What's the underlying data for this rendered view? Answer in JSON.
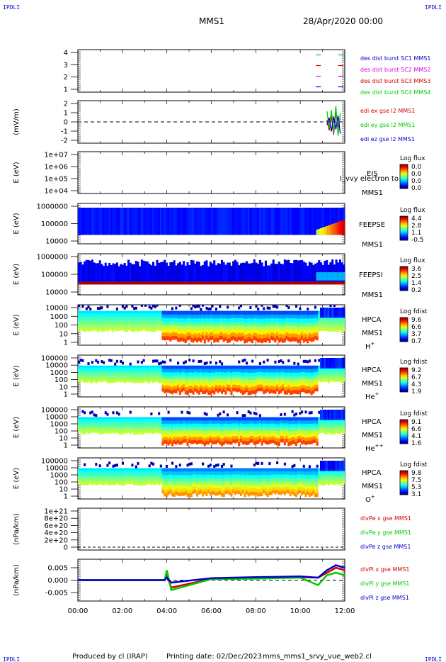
{
  "header": {
    "left_corner": "IPDLI",
    "right_corner": "IPDLI",
    "title": "MMS1",
    "date": "28/Apr/2020 00:00"
  },
  "footer": {
    "left_corner": "IPDLI",
    "right_corner": "IPDLI",
    "produced_by": "Produced by cl (IRAP)",
    "printing_date": "Printing date: 02/Dec/2023",
    "script_name": "mms_mms1_srvy_vue_web2.cl"
  },
  "x_axis": {
    "tick_labels": [
      "00:00",
      "02:00",
      "04:00",
      "06:00",
      "08:00",
      "10:00",
      "12:00"
    ],
    "range_hours": [
      0,
      12
    ]
  },
  "colors": {
    "red": "#d40000",
    "green": "#00cc00",
    "blue": "#0000c8",
    "magenta": "#e000e0",
    "line": "#000000"
  },
  "chart_data": [
    {
      "type": "line",
      "panel": "burst",
      "ylabel": "",
      "y_ticks": [
        "4",
        "3",
        "2",
        "1"
      ],
      "ylim": [
        0.5,
        4.5
      ],
      "legend": [
        {
          "text": "des dist burst SC1 MMS1",
          "color": "#0000c8"
        },
        {
          "text": "des dist burst SC2 MMS2",
          "color": "#e000e0"
        },
        {
          "text": "des dist burst SC3 MMS3",
          "color": "#d40000"
        },
        {
          "text": "des dist burst SC4 MMS4",
          "color": "#00cc00"
        }
      ],
      "series": [
        {
          "name": "des dist burst SC1 MMS1",
          "level": 1,
          "x": [
            10.7,
            11.1,
            11.7,
            12.0
          ]
        },
        {
          "name": "des dist burst SC2 MMS2",
          "level": 2,
          "x": [
            10.7,
            11.1,
            11.7,
            12.0
          ]
        },
        {
          "name": "des dist burst SC3 MMS3",
          "level": 3,
          "x": [
            10.7,
            11.1,
            11.7,
            12.0
          ]
        },
        {
          "name": "des dist burst SC4 MMS4",
          "level": 4,
          "x": [
            10.7,
            11.1,
            11.7,
            12.0
          ]
        }
      ]
    },
    {
      "type": "line",
      "panel": "edi",
      "ylabel": "(mV/m)",
      "y_ticks": [
        "2",
        "1",
        "0",
        "-1",
        "-2"
      ],
      "ylim": [
        -2,
        2
      ],
      "legend": [
        {
          "text": "edi ex gse l2 MMS1",
          "color": "#d40000"
        },
        {
          "text": "edi ey gse l2 MMS1",
          "color": "#00cc00"
        },
        {
          "text": "edi ez gse l2 MMS1",
          "color": "#0000c8"
        }
      ],
      "series": [
        {
          "name": "edi ex gse l2 MMS1",
          "x": [
            11.2,
            11.3,
            11.4,
            11.5,
            11.6,
            11.7,
            11.8
          ],
          "y": [
            0.2,
            -0.8,
            0.6,
            -1.2,
            0.9,
            -0.5,
            0.3
          ]
        },
        {
          "name": "edi ey gse l2 MMS1",
          "x": [
            11.2,
            11.3,
            11.4,
            11.5,
            11.6,
            11.7,
            11.8
          ],
          "y": [
            1.0,
            -0.6,
            1.1,
            -1.0,
            1.5,
            -1.3,
            0.8
          ]
        },
        {
          "name": "edi ez gse l2 MMS1",
          "x": [
            11.2,
            11.3,
            11.4,
            11.5,
            11.6,
            11.7,
            11.8
          ],
          "y": [
            -0.3,
            0.4,
            -0.9,
            0.5,
            -0.7,
            0.6,
            -1.1
          ]
        }
      ]
    },
    {
      "type": "heatmap",
      "panel": "eis",
      "ylabel": "E (eV)",
      "y_ticks": [
        "1e+07",
        "1e+06",
        "1e+05",
        "1e+04"
      ],
      "labels": [
        "EIS",
        "MMS1"
      ],
      "overlay_text": "I_vvy electron to",
      "colorbar": {
        "title": "Log flux",
        "ticks": [
          "0.0",
          "0.0",
          "0.0",
          "0.0"
        ]
      },
      "empty": true
    },
    {
      "type": "heatmap",
      "panel": "feepse",
      "ylabel": "E (eV)",
      "y_ticks": [
        "1000000",
        "100000",
        "10000"
      ],
      "labels": [
        "FEEPSE",
        "MMS1"
      ],
      "colorbar": {
        "title": "Log flux",
        "ticks": [
          "4.4",
          "2.8",
          "1.1",
          "-0.5"
        ]
      }
    },
    {
      "type": "heatmap",
      "panel": "feepsi",
      "ylabel": "E (eV)",
      "y_ticks": [
        "1000000",
        "100000",
        "10000"
      ],
      "labels": [
        "FEEPSI",
        "MMS1"
      ],
      "colorbar": {
        "title": "Log flux",
        "ticks": [
          "3.6",
          "2.5",
          "1.4",
          "0.2"
        ]
      }
    },
    {
      "type": "heatmap",
      "panel": "hpca_h",
      "ylabel": "E (eV)",
      "y_ticks": [
        "10000",
        "1000",
        "100",
        "10",
        "1"
      ],
      "labels": [
        "HPCA",
        "MMS1"
      ],
      "species": "H",
      "species_sup": "+",
      "colorbar": {
        "title": "Log fdist",
        "ticks": [
          "9.6",
          "6.6",
          "3.7",
          "0.7"
        ]
      }
    },
    {
      "type": "heatmap",
      "panel": "hpca_he",
      "ylabel": "E (eV)",
      "y_ticks": [
        "100000",
        "10000",
        "1000",
        "100",
        "10",
        "1"
      ],
      "labels": [
        "HPCA",
        "MMS1"
      ],
      "species": "He",
      "species_sup": "+",
      "colorbar": {
        "title": "Log fdist",
        "ticks": [
          "9.2",
          "6.7",
          "4.3",
          "1.9"
        ]
      }
    },
    {
      "type": "heatmap",
      "panel": "hpca_hepp",
      "ylabel": "E (eV)",
      "y_ticks": [
        "100000",
        "10000",
        "1000",
        "100",
        "10",
        "1"
      ],
      "labels": [
        "HPCA",
        "MMS1"
      ],
      "species": "He",
      "species_sup": "++",
      "colorbar": {
        "title": "Log fdist",
        "ticks": [
          "9.1",
          "6.6",
          "4.1",
          "1.6"
        ]
      }
    },
    {
      "type": "heatmap",
      "panel": "hpca_o",
      "ylabel": "E (eV)",
      "y_ticks": [
        "100000",
        "10000",
        "1000",
        "100",
        "10",
        "1"
      ],
      "labels": [
        "HPCA",
        "MMS1"
      ],
      "species": "O",
      "species_sup": "+",
      "colorbar": {
        "title": "Log fdist",
        "ticks": [
          "9.8",
          "7.5",
          "5.3",
          "3.1"
        ]
      }
    },
    {
      "type": "line",
      "panel": "divpe",
      "ylabel": "(nPa/km)",
      "y_ticks": [
        "1e+21",
        "8e+20",
        "6e+20",
        "4e+20",
        "2e+20",
        "0"
      ],
      "ylim": [
        0,
        1.05e+21
      ],
      "legend": [
        {
          "text": "divPe x gse MMS1",
          "color": "#d40000"
        },
        {
          "text": "divPe y gse MMS1",
          "color": "#00cc00"
        },
        {
          "text": "divPe z gse MMS1",
          "color": "#0000c8"
        }
      ],
      "series": []
    },
    {
      "type": "line",
      "panel": "divpi",
      "ylabel": "(nPa/km)",
      "y_ticks": [
        "0.005",
        "0.000",
        "-0.005"
      ],
      "ylim": [
        -0.0075,
        0.0075
      ],
      "legend": [
        {
          "text": "divPi x gse MMS1",
          "color": "#d40000"
        },
        {
          "text": "divPi y gse MMS1",
          "color": "#00cc00"
        },
        {
          "text": "divPi z gse MMS1",
          "color": "#0000c8"
        }
      ],
      "series": [
        {
          "name": "divPi x gse MMS1",
          "x": [
            0,
            3.9,
            4.0,
            4.2,
            6,
            8,
            10,
            10.8,
            11.2,
            11.6,
            12
          ],
          "y": [
            0,
            0,
            0.002,
            -0.003,
            0.0005,
            0.0008,
            0.0012,
            0.001,
            0.003,
            0.005,
            0.004
          ]
        },
        {
          "name": "divPi y gse MMS1",
          "x": [
            0,
            3.9,
            4.0,
            4.2,
            6,
            8,
            10,
            10.8,
            11.2,
            11.6,
            12
          ],
          "y": [
            0,
            0,
            0.004,
            -0.004,
            0.0004,
            0.0006,
            0.001,
            -0.002,
            0.002,
            0.003,
            0.002
          ]
        },
        {
          "name": "divPi z gse MMS1",
          "x": [
            0,
            3.9,
            4.0,
            4.2,
            6,
            8,
            10,
            10.8,
            11.2,
            11.6,
            12
          ],
          "y": [
            0,
            0,
            0.001,
            -0.001,
            0.0008,
            0.0012,
            0.0015,
            0.001,
            0.004,
            0.006,
            0.005
          ]
        }
      ]
    }
  ]
}
